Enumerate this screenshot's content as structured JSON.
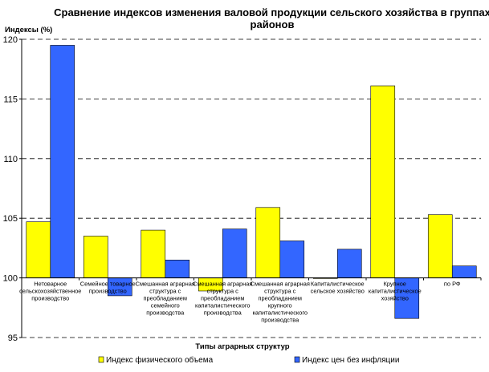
{
  "chart_data": {
    "type": "bar",
    "title_lines": [
      "Сравнение индексов изменения валовой продукции сельского хозяйства в группах",
      "районов"
    ],
    "ylabel": "Индексы (%)",
    "xlabel": "Типы аграрных структур",
    "ylim": [
      95,
      120
    ],
    "yticks": [
      95,
      100,
      105,
      110,
      115,
      120
    ],
    "baseline": 100,
    "grid": true,
    "legend_position": "bottom",
    "categories": [
      [
        "Нетоварное",
        "сельскохозяйственное",
        "производство"
      ],
      [
        "Семейное товарное",
        "производство"
      ],
      [
        "Смешанная аграрная",
        "структура с",
        "преобладанием",
        "семейного",
        "производства"
      ],
      [
        "Смешанная аграрная",
        "структура с",
        "преобладанием",
        "капиталистического",
        "производства"
      ],
      [
        "Смешанная аграрная",
        "структура с",
        "преобладанием",
        "крупного",
        "капиталистического",
        "производства"
      ],
      [
        "Капиталистическое",
        "сельское хозяйство"
      ],
      [
        "Крупное",
        "капиталистическое",
        "хозяйство"
      ],
      [
        "по РФ"
      ]
    ],
    "series": [
      {
        "name": "Индекс физического объема",
        "color": "#ffff00",
        "values": [
          104.7,
          103.5,
          104.0,
          98.9,
          105.9,
          100.0,
          116.1,
          105.3
        ]
      },
      {
        "name": "Индекс цен без инфляции",
        "color": "#3366ff",
        "values": [
          119.5,
          98.5,
          101.5,
          104.1,
          103.1,
          102.4,
          96.6,
          101.0
        ]
      }
    ]
  }
}
